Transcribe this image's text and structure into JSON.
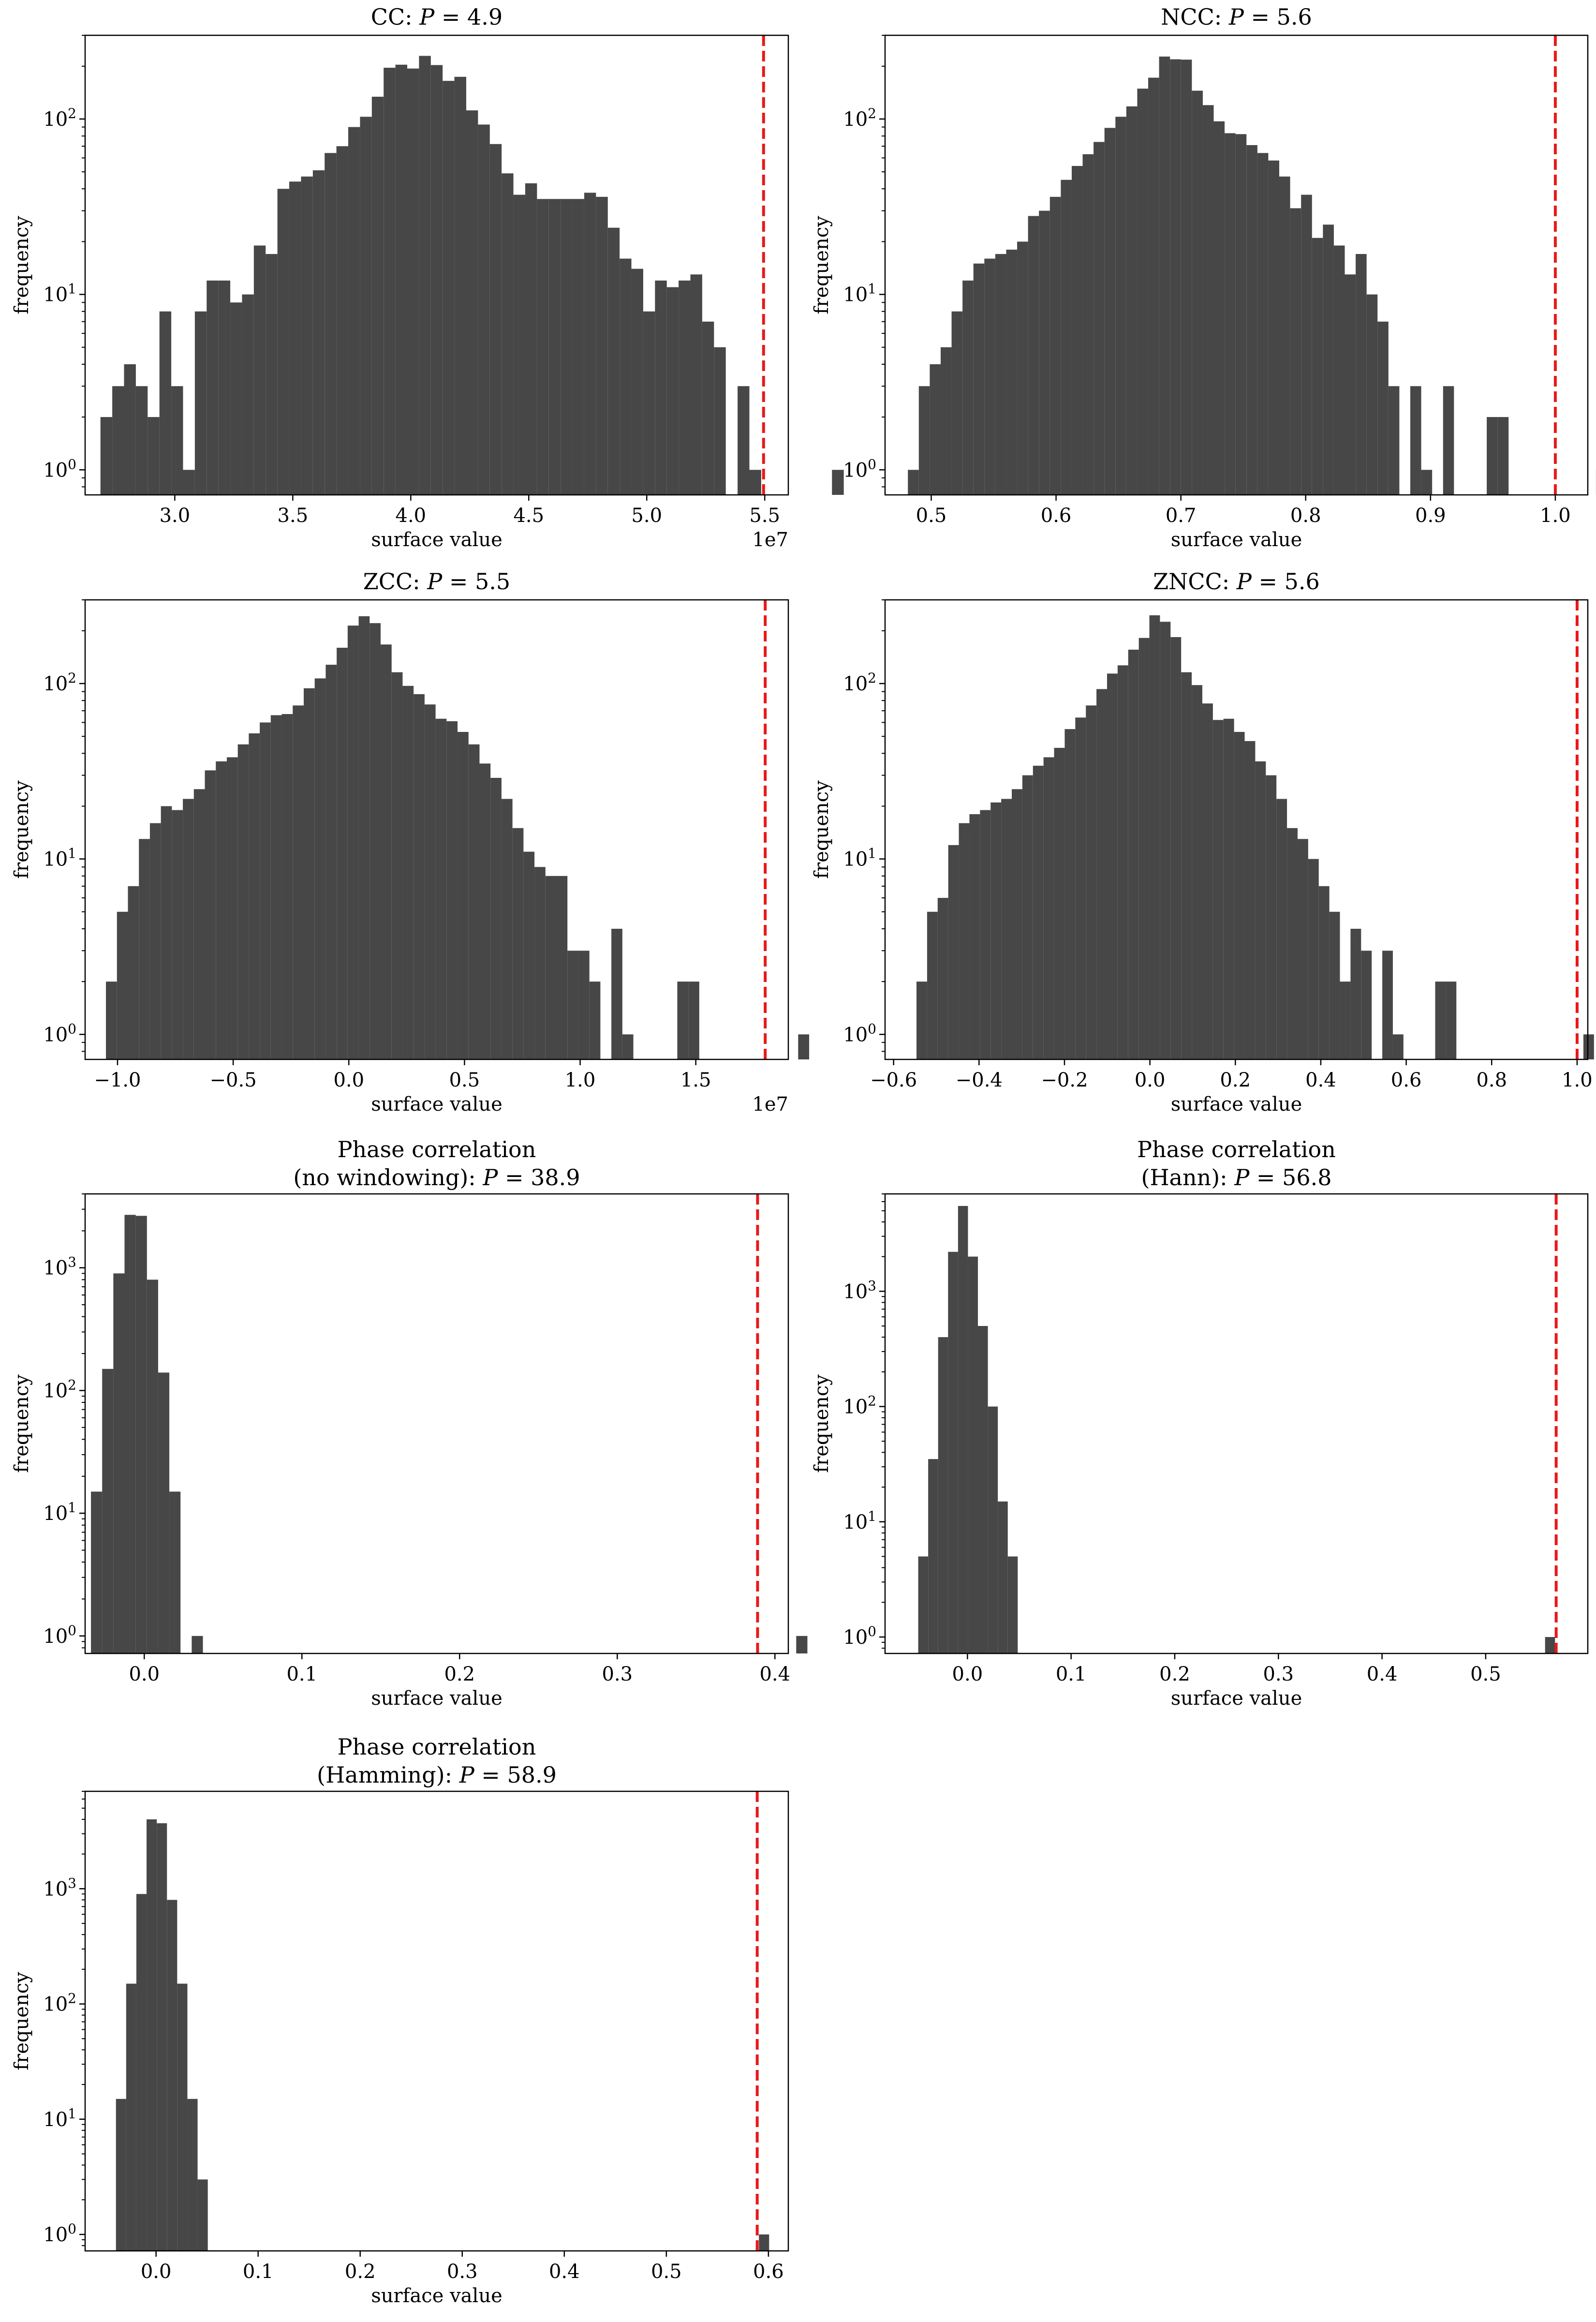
{
  "chart_data": [
    {
      "type": "bar",
      "title": "CC:",
      "stat_label": "P",
      "stat_value": "4.9",
      "xlabel": "surface value",
      "ylabel": "frequency",
      "yscale": "log",
      "xlim": [
        2.62,
        5.6
      ],
      "ylim": [
        0.72,
        300
      ],
      "x_multiplier": "1e7",
      "xticks": [
        {
          "v": 3.0,
          "label": "3.0"
        },
        {
          "v": 3.5,
          "label": "3.5"
        },
        {
          "v": 4.0,
          "label": "4.0"
        },
        {
          "v": 4.5,
          "label": "4.5"
        },
        {
          "v": 5.0,
          "label": "5.0"
        },
        {
          "v": 5.5,
          "label": "5.5"
        }
      ],
      "yticks": [
        {
          "exp": 0,
          "label": "10",
          "sup": "0"
        },
        {
          "exp": 1,
          "label": "10",
          "sup": "1"
        },
        {
          "exp": 2,
          "label": "10",
          "sup": "2"
        }
      ],
      "bins": {
        "start": 2.685,
        "width": 0.05
      },
      "values": [
        2,
        3,
        4,
        3,
        2,
        8,
        3,
        1,
        8,
        12,
        12,
        9,
        10,
        19,
        17,
        40,
        44,
        47,
        51,
        64,
        70,
        90,
        103,
        134,
        196,
        204,
        194,
        229,
        203,
        165,
        174,
        112,
        93,
        72,
        49,
        37,
        43,
        35,
        35,
        35,
        35,
        38,
        36,
        24,
        16,
        14,
        8,
        12,
        11,
        12,
        13,
        7,
        5,
        0,
        3,
        1,
        0,
        0,
        0,
        0,
        0,
        0,
        1
      ],
      "marker": 5.495,
      "bar_color": "#474747",
      "marker_color": "#e8191a"
    },
    {
      "type": "bar",
      "title": "NCC:",
      "stat_label": "P",
      "stat_value": "5.6",
      "xlabel": "surface value",
      "ylabel": "frequency",
      "yscale": "log",
      "xlim": [
        0.463,
        1.026
      ],
      "ylim": [
        0.72,
        300
      ],
      "x_multiplier": "",
      "xticks": [
        {
          "v": 0.5,
          "label": "0.5"
        },
        {
          "v": 0.6,
          "label": "0.6"
        },
        {
          "v": 0.7,
          "label": "0.7"
        },
        {
          "v": 0.8,
          "label": "0.8"
        },
        {
          "v": 0.9,
          "label": "0.9"
        },
        {
          "v": 1.0,
          "label": "1.0"
        }
      ],
      "yticks": [
        {
          "exp": 0,
          "label": "10",
          "sup": "0"
        },
        {
          "exp": 1,
          "label": "10",
          "sup": "1"
        },
        {
          "exp": 2,
          "label": "10",
          "sup": "2"
        }
      ],
      "bins": {
        "start": 0.4813,
        "width": 0.00875
      },
      "values": [
        1,
        3,
        4,
        5,
        8,
        12,
        15,
        16,
        17,
        18,
        20,
        28,
        30,
        36,
        45,
        54,
        63,
        74,
        89,
        103,
        118,
        149,
        172,
        227,
        219,
        218,
        145,
        120,
        97,
        83,
        82,
        71,
        64,
        58,
        47,
        31,
        37,
        21,
        25,
        19,
        13,
        17,
        10,
        7,
        3,
        0,
        3,
        1,
        0,
        3,
        0,
        0,
        0,
        2,
        2,
        0,
        0,
        0,
        0,
        0,
        0,
        0,
        0,
        1
      ],
      "marker": 1.0,
      "bar_color": "#474747",
      "marker_color": "#e8191a"
    },
    {
      "type": "bar",
      "title": "ZCC:",
      "stat_label": "P",
      "stat_value": "5.5",
      "xlabel": "surface value",
      "ylabel": "frequency",
      "yscale": "log",
      "xlim": [
        -1.14,
        1.9
      ],
      "ylim": [
        0.72,
        300
      ],
      "x_multiplier": "1e7",
      "xticks": [
        {
          "v": -1.0,
          "label": "−1.0"
        },
        {
          "v": -0.5,
          "label": "−0.5"
        },
        {
          "v": 0.0,
          "label": "0.0"
        },
        {
          "v": 0.5,
          "label": "0.5"
        },
        {
          "v": 1.0,
          "label": "1.0"
        },
        {
          "v": 1.5,
          "label": "1.5"
        }
      ],
      "yticks": [
        {
          "exp": 0,
          "label": "10",
          "sup": "0"
        },
        {
          "exp": 1,
          "label": "10",
          "sup": "1"
        },
        {
          "exp": 2,
          "label": "10",
          "sup": "2"
        }
      ],
      "bins": {
        "start": -1.05,
        "width": 0.0475
      },
      "values": [
        2,
        5,
        7,
        13,
        16,
        20,
        19,
        22,
        25,
        32,
        36,
        38,
        45,
        52,
        60,
        66,
        67,
        75,
        94,
        107,
        128,
        160,
        214,
        242,
        221,
        167,
        116,
        97,
        87,
        76,
        63,
        61,
        53,
        45,
        35,
        29,
        22,
        15,
        11,
        9,
        8,
        8,
        3,
        3,
        2,
        0,
        4,
        1,
        0,
        0,
        0,
        0,
        2,
        2,
        0,
        0,
        0,
        0,
        0,
        0,
        0,
        0,
        0,
        1
      ],
      "marker": 1.8,
      "bar_color": "#474747",
      "marker_color": "#e8191a"
    },
    {
      "type": "bar",
      "title": "ZNCC:",
      "stat_label": "P",
      "stat_value": "5.6",
      "xlabel": "surface value",
      "ylabel": "frequency",
      "yscale": "log",
      "xlim": [
        -0.62,
        1.025
      ],
      "ylim": [
        0.72,
        300
      ],
      "x_multiplier": "",
      "xticks": [
        {
          "v": -0.6,
          "label": "−0.6"
        },
        {
          "v": -0.4,
          "label": "−0.4"
        },
        {
          "v": -0.2,
          "label": "−0.2"
        },
        {
          "v": 0.0,
          "label": "0.0"
        },
        {
          "v": 0.2,
          "label": "0.2"
        },
        {
          "v": 0.4,
          "label": "0.4"
        },
        {
          "v": 0.6,
          "label": "0.6"
        },
        {
          "v": 0.8,
          "label": "0.8"
        },
        {
          "v": 1.0,
          "label": "1.0"
        }
      ],
      "yticks": [
        {
          "exp": 0,
          "label": "10",
          "sup": "0"
        },
        {
          "exp": 1,
          "label": "10",
          "sup": "1"
        },
        {
          "exp": 2,
          "label": "10",
          "sup": "2"
        }
      ],
      "bins": {
        "start": -0.5464,
        "width": 0.02478
      },
      "values": [
        2,
        5,
        6,
        12,
        16,
        18,
        19,
        21,
        22,
        25,
        30,
        34,
        38,
        43,
        55,
        64,
        75,
        93,
        114,
        127,
        156,
        182,
        245,
        225,
        184,
        116,
        98,
        77,
        62,
        63,
        53,
        47,
        36,
        30,
        22,
        15,
        13,
        10,
        7,
        5,
        2,
        4,
        3,
        0,
        3,
        1,
        0,
        0,
        0,
        2,
        2,
        0,
        0,
        0,
        0,
        0,
        0,
        0,
        0,
        0,
        0,
        0,
        0,
        1
      ],
      "marker": 1.0,
      "bar_color": "#474747",
      "marker_color": "#e8191a"
    },
    {
      "type": "bar",
      "title": "Phase correlation",
      "title2": "(no windowing):",
      "stat_label": "P",
      "stat_value": "38.9",
      "xlabel": "surface value",
      "ylabel": "frequency",
      "yscale": "log",
      "xlim": [
        -0.0375,
        0.4085
      ],
      "ylim": [
        0.72,
        4000
      ],
      "x_multiplier": "",
      "xticks": [
        {
          "v": 0.0,
          "label": "0.0"
        },
        {
          "v": 0.1,
          "label": "0.1"
        },
        {
          "v": 0.2,
          "label": "0.2"
        },
        {
          "v": 0.3,
          "label": "0.3"
        },
        {
          "v": 0.4,
          "label": "0.4"
        }
      ],
      "yticks": [
        {
          "exp": 0,
          "label": "10",
          "sup": "0"
        },
        {
          "exp": 1,
          "label": "10",
          "sup": "1"
        },
        {
          "exp": 2,
          "label": "10",
          "sup": "2"
        },
        {
          "exp": 3,
          "label": "10",
          "sup": "3"
        }
      ],
      "bins": {
        "start": -0.0338,
        "width": 0.0071
      },
      "values": [
        15,
        150,
        900,
        2700,
        2650,
        800,
        140,
        15,
        0,
        1,
        0,
        0,
        0,
        0,
        0,
        0,
        0,
        0,
        0,
        0,
        0,
        0,
        0,
        0,
        0,
        0,
        0,
        0,
        0,
        0,
        0,
        0,
        0,
        0,
        0,
        0,
        0,
        0,
        0,
        0,
        0,
        0,
        0,
        0,
        0,
        0,
        0,
        0,
        0,
        0,
        0,
        0,
        0,
        0,
        0,
        0,
        0,
        0,
        0,
        0,
        0,
        0,
        0,
        1
      ],
      "marker": 0.389,
      "bar_color": "#474747",
      "marker_color": "#e8191a"
    },
    {
      "type": "bar",
      "title": "Phase correlation",
      "title2": "(Hann):",
      "stat_label": "P",
      "stat_value": "56.8",
      "xlabel": "surface value",
      "ylabel": "frequency",
      "yscale": "log",
      "xlim": [
        -0.0795,
        0.5985
      ],
      "ylim": [
        0.72,
        7000
      ],
      "x_multiplier": "",
      "xticks": [
        {
          "v": 0.0,
          "label": "0.0"
        },
        {
          "v": 0.1,
          "label": "0.1"
        },
        {
          "v": 0.2,
          "label": "0.2"
        },
        {
          "v": 0.3,
          "label": "0.3"
        },
        {
          "v": 0.4,
          "label": "0.4"
        },
        {
          "v": 0.5,
          "label": "0.5"
        }
      ],
      "yticks": [
        {
          "exp": 0,
          "label": "10",
          "sup": "0"
        },
        {
          "exp": 1,
          "label": "10",
          "sup": "1"
        },
        {
          "exp": 2,
          "label": "10",
          "sup": "2"
        },
        {
          "exp": 3,
          "label": "10",
          "sup": "3"
        }
      ],
      "bins": {
        "start": -0.0475,
        "width": 0.0096
      },
      "values": [
        5,
        35,
        400,
        2200,
        5500,
        2000,
        500,
        100,
        15,
        5,
        0,
        0,
        0,
        0,
        0,
        0,
        0,
        0,
        0,
        0,
        0,
        0,
        0,
        0,
        0,
        0,
        0,
        0,
        0,
        0,
        0,
        0,
        0,
        0,
        0,
        0,
        0,
        0,
        0,
        0,
        0,
        0,
        0,
        0,
        0,
        0,
        0,
        0,
        0,
        0,
        0,
        0,
        0,
        0,
        0,
        0,
        0,
        0,
        0,
        0,
        0,
        0,
        0,
        1
      ],
      "marker": 0.568,
      "bar_color": "#474747",
      "marker_color": "#e8191a"
    },
    {
      "type": "bar",
      "title": "Phase correlation",
      "title2": "(Hamming):",
      "stat_label": "P",
      "stat_value": "58.9",
      "xlabel": "surface value",
      "ylabel": "frequency",
      "yscale": "log",
      "xlim": [
        -0.0695,
        0.6195
      ],
      "ylim": [
        0.72,
        7000
      ],
      "x_multiplier": "",
      "xticks": [
        {
          "v": 0.0,
          "label": "0.0"
        },
        {
          "v": 0.1,
          "label": "0.1"
        },
        {
          "v": 0.2,
          "label": "0.2"
        },
        {
          "v": 0.3,
          "label": "0.3"
        },
        {
          "v": 0.4,
          "label": "0.4"
        },
        {
          "v": 0.5,
          "label": "0.5"
        },
        {
          "v": 0.6,
          "label": "0.6"
        }
      ],
      "yticks": [
        {
          "exp": 0,
          "label": "10",
          "sup": "0"
        },
        {
          "exp": 1,
          "label": "10",
          "sup": "1"
        },
        {
          "exp": 2,
          "label": "10",
          "sup": "2"
        },
        {
          "exp": 3,
          "label": "10",
          "sup": "3"
        }
      ],
      "bins": {
        "start": -0.0393,
        "width": 0.01
      },
      "values": [
        15,
        150,
        900,
        4000,
        3700,
        800,
        150,
        15,
        3,
        0,
        0,
        0,
        0,
        0,
        0,
        0,
        0,
        0,
        0,
        0,
        0,
        0,
        0,
        0,
        0,
        0,
        0,
        0,
        0,
        0,
        0,
        0,
        0,
        0,
        0,
        0,
        0,
        0,
        0,
        0,
        0,
        0,
        0,
        0,
        0,
        0,
        0,
        0,
        0,
        0,
        0,
        0,
        0,
        0,
        0,
        0,
        0,
        0,
        0,
        0,
        0,
        0,
        0,
        1
      ],
      "marker": 0.589,
      "bar_color": "#474747",
      "marker_color": "#e8191a"
    }
  ]
}
